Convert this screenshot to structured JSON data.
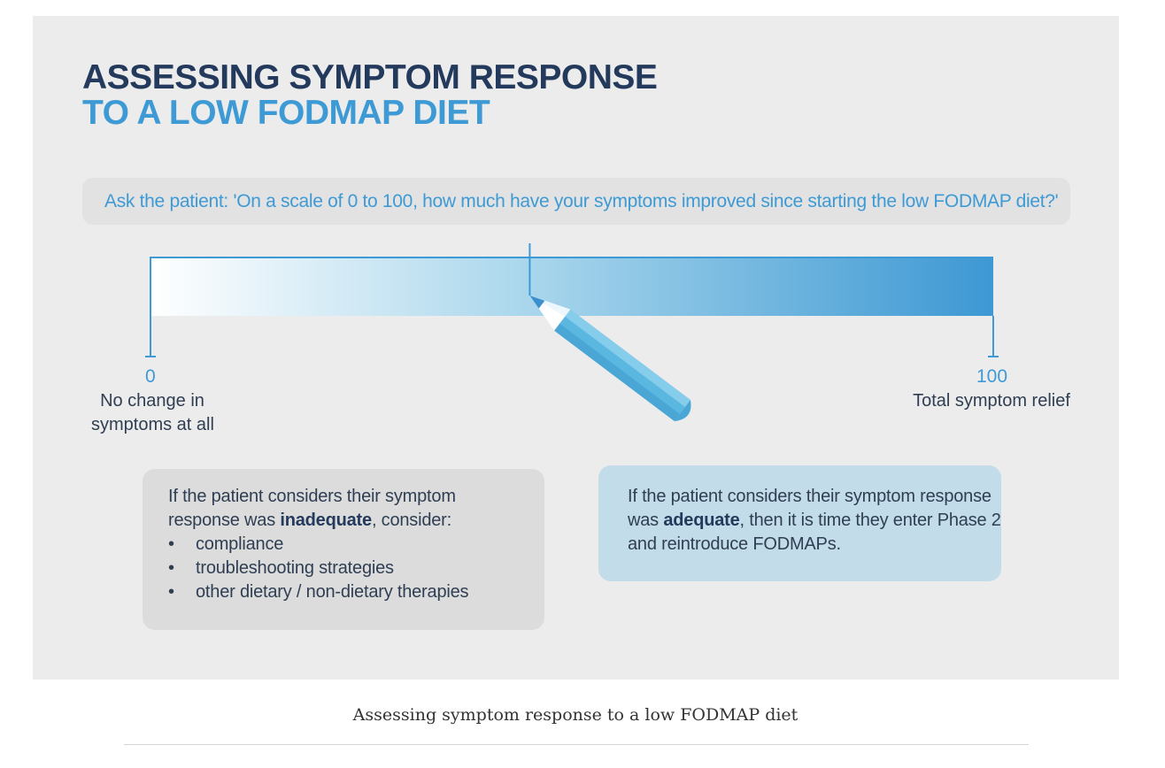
{
  "title": {
    "line1": "ASSESSING SYMPTOM RESPONSE",
    "line2": "TO A LOW FODMAP DIET"
  },
  "question": "Ask the patient: 'On a scale of 0 to 100, how much have your symptoms improved since starting the low FODMAP diet?'",
  "scale": {
    "min_label": "0",
    "max_label": "100",
    "min_description": [
      "No change in",
      "symptoms at all"
    ],
    "max_description": "Total symptom relief",
    "marker_value": 45,
    "colors": {
      "start": "#ffffff",
      "end": "#3d98d3",
      "pencil_body": "#5ab7e0",
      "pencil_light": "#86cdec",
      "pencil_tip": "#3a8fcf"
    }
  },
  "inadequate": {
    "intro": "If the patient considers their symptom response was",
    "keyword": "inadequate",
    "suffix": ", consider:",
    "items": [
      "compliance",
      "troubleshooting strategies",
      "other dietary / non-dietary therapies"
    ]
  },
  "adequate": {
    "line1": "If the patient considers their symptom response",
    "line2_prefix": "was ",
    "keyword": "adequate",
    "line2_suffix": ", then it is time they enter Phase 2",
    "line3": "and reintroduce FODMAPs."
  },
  "caption": "Assessing symptom response to a low FODMAP diet"
}
